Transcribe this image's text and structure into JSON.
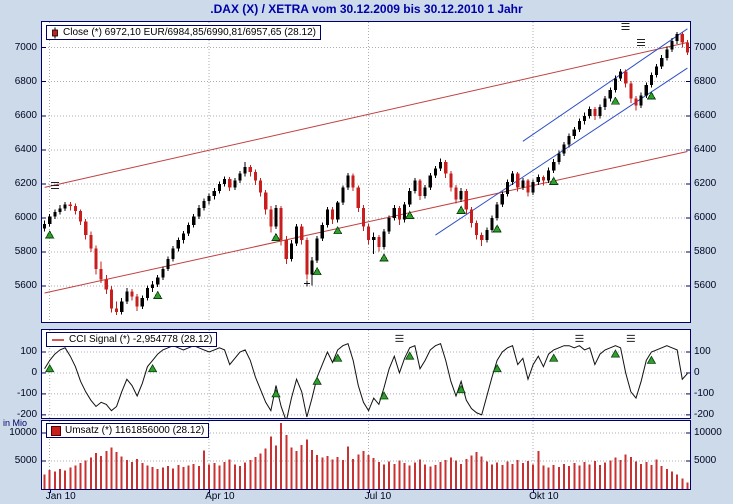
{
  "title": ".DAX (X) / XETRA vom 30.12.2009 bis 30.12.2010 1 Jahr",
  "volume_unit": "in Mio",
  "legends": {
    "close": "Close (*) 6972,10 EUR/6984,85/6990,81/6957,65 (28.12)",
    "cci": "CCI Signal (*) -2,954778 (28.12)",
    "volume": "Umsatz (*) 1161856000 (28.12)"
  },
  "colors": {
    "background": "#ccdaea",
    "panel_bg": "#ffffff",
    "border": "#000066",
    "title": "#0000a8",
    "grid": "#a8aeb6",
    "candle_up": "#000000",
    "candle_down": "#c81e1e",
    "trend_red": "#c04040",
    "trend_blue": "#3050c8",
    "cci_line": "#111111",
    "volume_bar": "#c83232",
    "signal_green": "#2f9e2f"
  },
  "x_axis": {
    "labels": [
      {
        "label": "Jan 10",
        "index": 1
      },
      {
        "label": "Apr 10",
        "index": 32
      },
      {
        "label": "Jul 10",
        "index": 63
      },
      {
        "label": "Okt 10",
        "index": 95
      }
    ]
  },
  "chart_data": [
    {
      "type": "candlestick",
      "name": "DAX Close",
      "y_ticks": [
        7000,
        6800,
        6600,
        6400,
        6200,
        6000,
        5800,
        5600
      ],
      "value_range": [
        5390,
        7150
      ],
      "candles": [
        [
          5940,
          5985,
          5920,
          5965
        ],
        [
          5965,
          6025,
          5950,
          6010
        ],
        [
          6010,
          6050,
          5995,
          6035
        ],
        [
          6035,
          6075,
          6020,
          6055
        ],
        [
          6055,
          6095,
          6040,
          6080
        ],
        [
          6080,
          6095,
          6045,
          6070
        ],
        [
          6070,
          6085,
          6020,
          6040
        ],
        [
          6040,
          6050,
          5960,
          5980
        ],
        [
          5980,
          5995,
          5875,
          5900
        ],
        [
          5900,
          5920,
          5800,
          5820
        ],
        [
          5820,
          5840,
          5670,
          5700
        ],
        [
          5700,
          5745,
          5620,
          5640
        ],
        [
          5640,
          5665,
          5555,
          5580
        ],
        [
          5580,
          5600,
          5445,
          5470
        ],
        [
          5470,
          5510,
          5430,
          5450
        ],
        [
          5450,
          5530,
          5435,
          5510
        ],
        [
          5510,
          5590,
          5495,
          5570
        ],
        [
          5570,
          5585,
          5515,
          5540
        ],
        [
          5540,
          5555,
          5455,
          5480
        ],
        [
          5480,
          5545,
          5465,
          5530
        ],
        [
          5530,
          5605,
          5515,
          5590
        ],
        [
          5590,
          5630,
          5565,
          5610
        ],
        [
          5610,
          5665,
          5595,
          5650
        ],
        [
          5650,
          5715,
          5635,
          5700
        ],
        [
          5700,
          5775,
          5690,
          5760
        ],
        [
          5760,
          5835,
          5745,
          5820
        ],
        [
          5820,
          5885,
          5805,
          5870
        ],
        [
          5870,
          5925,
          5850,
          5910
        ],
        [
          5910,
          5975,
          5895,
          5960
        ],
        [
          5960,
          6025,
          5945,
          6010
        ],
        [
          6010,
          6075,
          5995,
          6060
        ],
        [
          6060,
          6115,
          6045,
          6100
        ],
        [
          6100,
          6145,
          6080,
          6130
        ],
        [
          6130,
          6175,
          6110,
          6160
        ],
        [
          6160,
          6215,
          6145,
          6200
        ],
        [
          6200,
          6245,
          6185,
          6230
        ],
        [
          6230,
          6240,
          6160,
          6180
        ],
        [
          6180,
          6235,
          6165,
          6220
        ],
        [
          6220,
          6275,
          6205,
          6260
        ],
        [
          6260,
          6330,
          6245,
          6300
        ],
        [
          6300,
          6310,
          6245,
          6270
        ],
        [
          6270,
          6285,
          6195,
          6220
        ],
        [
          6220,
          6235,
          6125,
          6150
        ],
        [
          6150,
          6165,
          6020,
          6050
        ],
        [
          6050,
          6070,
          5915,
          5950
        ],
        [
          5950,
          6075,
          5935,
          6060
        ],
        [
          6060,
          6070,
          5840,
          5870
        ],
        [
          5870,
          5895,
          5730,
          5760
        ],
        [
          5760,
          5870,
          5745,
          5850
        ],
        [
          5850,
          5965,
          5835,
          5950
        ],
        [
          5950,
          5965,
          5845,
          5870
        ],
        [
          5870,
          5885,
          5640,
          5670
        ],
        [
          5670,
          5770,
          5605,
          5750
        ],
        [
          5750,
          5895,
          5735,
          5880
        ],
        [
          5880,
          5975,
          5865,
          5960
        ],
        [
          5960,
          6065,
          5945,
          6050
        ],
        [
          6050,
          6065,
          5965,
          5990
        ],
        [
          5990,
          6100,
          5975,
          6090
        ],
        [
          6090,
          6190,
          6075,
          6180
        ],
        [
          6180,
          6265,
          6165,
          6250
        ],
        [
          6250,
          6260,
          6160,
          6180
        ],
        [
          6180,
          6190,
          6035,
          6060
        ],
        [
          6060,
          6075,
          5925,
          5950
        ],
        [
          5950,
          5965,
          5845,
          5870
        ],
        [
          5870,
          5915,
          5790,
          5890
        ],
        [
          5890,
          5900,
          5805,
          5830
        ],
        [
          5830,
          5935,
          5815,
          5920
        ],
        [
          5920,
          6015,
          5905,
          6000
        ],
        [
          6000,
          6075,
          5985,
          6060
        ],
        [
          6060,
          6070,
          5960,
          5990
        ],
        [
          5990,
          6095,
          5975,
          6080
        ],
        [
          6080,
          6175,
          6065,
          6160
        ],
        [
          6160,
          6235,
          6145,
          6220
        ],
        [
          6220,
          6230,
          6105,
          6130
        ],
        [
          6130,
          6195,
          6115,
          6180
        ],
        [
          6180,
          6265,
          6165,
          6250
        ],
        [
          6250,
          6305,
          6235,
          6290
        ],
        [
          6290,
          6350,
          6275,
          6330
        ],
        [
          6330,
          6340,
          6235,
          6260
        ],
        [
          6260,
          6275,
          6155,
          6180
        ],
        [
          6180,
          6195,
          6085,
          6110
        ],
        [
          6110,
          6175,
          6095,
          6160
        ],
        [
          6160,
          6170,
          6025,
          6050
        ],
        [
          6050,
          6065,
          5945,
          5970
        ],
        [
          5970,
          5985,
          5875,
          5900
        ],
        [
          5900,
          5915,
          5835,
          5870
        ],
        [
          5870,
          5945,
          5855,
          5930
        ],
        [
          5930,
          6015,
          5915,
          6000
        ],
        [
          6000,
          6095,
          5985,
          6080
        ],
        [
          6080,
          6155,
          6065,
          6140
        ],
        [
          6140,
          6225,
          6125,
          6210
        ],
        [
          6210,
          6275,
          6195,
          6260
        ],
        [
          6260,
          6270,
          6155,
          6180
        ],
        [
          6180,
          6235,
          6165,
          6220
        ],
        [
          6220,
          6230,
          6125,
          6150
        ],
        [
          6150,
          6225,
          6135,
          6210
        ],
        [
          6210,
          6255,
          6195,
          6240
        ],
        [
          6240,
          6250,
          6190,
          6220
        ],
        [
          6220,
          6295,
          6205,
          6280
        ],
        [
          6280,
          6345,
          6265,
          6330
        ],
        [
          6330,
          6395,
          6315,
          6380
        ],
        [
          6380,
          6445,
          6365,
          6430
        ],
        [
          6430,
          6495,
          6415,
          6480
        ],
        [
          6480,
          6535,
          6465,
          6520
        ],
        [
          6520,
          6585,
          6505,
          6570
        ],
        [
          6570,
          6620,
          6550,
          6600
        ],
        [
          6600,
          6655,
          6585,
          6640
        ],
        [
          6640,
          6650,
          6575,
          6600
        ],
        [
          6600,
          6665,
          6585,
          6650
        ],
        [
          6650,
          6715,
          6635,
          6700
        ],
        [
          6700,
          6765,
          6685,
          6750
        ],
        [
          6750,
          6835,
          6735,
          6820
        ],
        [
          6820,
          6875,
          6805,
          6860
        ],
        [
          6860,
          6870,
          6765,
          6790
        ],
        [
          6790,
          6805,
          6675,
          6700
        ],
        [
          6700,
          6715,
          6630,
          6660
        ],
        [
          6660,
          6735,
          6645,
          6720
        ],
        [
          6720,
          6795,
          6705,
          6780
        ],
        [
          6780,
          6855,
          6765,
          6840
        ],
        [
          6840,
          6905,
          6825,
          6890
        ],
        [
          6890,
          6955,
          6875,
          6940
        ],
        [
          6940,
          7005,
          6925,
          6990
        ],
        [
          6990,
          7055,
          6975,
          7040
        ],
        [
          7040,
          7090,
          7020,
          7080
        ],
        [
          7080,
          7087,
          7000,
          7030
        ],
        [
          7030,
          7045,
          6955,
          6972
        ]
      ],
      "trendlines": [
        {
          "name": "lower-red-channel",
          "from": [
            0,
            5560
          ],
          "to": [
            125,
            6390
          ],
          "color": "#c04040"
        },
        {
          "name": "upper-red-channel",
          "from": [
            0,
            6180
          ],
          "to": [
            125,
            7030
          ],
          "color": "#c04040"
        },
        {
          "name": "lower-blue-channel",
          "from": [
            76,
            5900
          ],
          "to": [
            125,
            6880
          ],
          "color": "#3050c8"
        },
        {
          "name": "upper-blue-channel",
          "from": [
            93,
            6450
          ],
          "to": [
            125,
            7110
          ],
          "color": "#3050c8"
        }
      ],
      "buy_markers": [
        [
          1,
          5900
        ],
        [
          22,
          5545
        ],
        [
          45,
          5885
        ],
        [
          53,
          5685
        ],
        [
          57,
          5925
        ],
        [
          66,
          5765
        ],
        [
          71,
          6015
        ],
        [
          81,
          6045
        ],
        [
          88,
          5935
        ],
        [
          99,
          6215
        ],
        [
          111,
          6685
        ],
        [
          118,
          6715
        ]
      ],
      "hash_markers": [
        [
          2,
          6190
        ],
        [
          113,
          7125
        ],
        [
          116,
          7030
        ]
      ],
      "plus_markers": [
        [
          51,
          5615
        ]
      ]
    },
    {
      "type": "line",
      "name": "CCI Signal",
      "y_ticks": [
        100,
        0,
        -100,
        -200
      ],
      "value_range": [
        -215,
        205
      ],
      "values": [
        20,
        60,
        90,
        110,
        120,
        80,
        30,
        -40,
        -90,
        -130,
        -160,
        -140,
        -150,
        -180,
        -160,
        -90,
        -30,
        -60,
        -110,
        -50,
        30,
        60,
        90,
        110,
        120,
        130,
        120,
        110,
        120,
        130,
        120,
        110,
        100,
        110,
        120,
        110,
        40,
        70,
        100,
        110,
        60,
        -20,
        -80,
        -140,
        -180,
        -60,
        -160,
        -230,
        -120,
        -30,
        -90,
        -210,
        -120,
        -20,
        40,
        100,
        50,
        110,
        130,
        140,
        60,
        -60,
        -140,
        -180,
        -120,
        -150,
        -70,
        20,
        80,
        0,
        70,
        120,
        130,
        20,
        60,
        110,
        130,
        140,
        60,
        -40,
        -110,
        -40,
        -130,
        -170,
        -190,
        -200,
        -110,
        -20,
        60,
        100,
        120,
        130,
        40,
        70,
        -30,
        40,
        80,
        30,
        90,
        110,
        120,
        130,
        130,
        120,
        130,
        110,
        120,
        40,
        90,
        110,
        120,
        130,
        120,
        0,
        -90,
        -120,
        -40,
        60,
        100,
        110,
        120,
        130,
        120,
        110,
        -30,
        -3
      ],
      "buy_markers": [
        [
          1,
          20
        ],
        [
          21,
          20
        ],
        [
          45,
          -100
        ],
        [
          53,
          -40
        ],
        [
          57,
          70
        ],
        [
          66,
          -110
        ],
        [
          71,
          80
        ],
        [
          81,
          -80
        ],
        [
          88,
          20
        ],
        [
          99,
          70
        ],
        [
          111,
          90
        ],
        [
          118,
          60
        ]
      ],
      "hash_markers": [
        [
          69,
          165
        ],
        [
          104,
          165
        ],
        [
          114,
          165
        ]
      ]
    },
    {
      "type": "bar",
      "name": "Umsatz",
      "y_ticks": [
        10000,
        5000
      ],
      "value_range": [
        0,
        12143
      ],
      "values": [
        2600,
        3400,
        3100,
        3600,
        3300,
        3800,
        4200,
        4600,
        5100,
        5600,
        6400,
        5900,
        6800,
        7400,
        6600,
        5800,
        5200,
        4800,
        5400,
        4600,
        4200,
        3900,
        3600,
        3800,
        4100,
        3700,
        4300,
        3900,
        4200,
        4500,
        4100,
        6900,
        4400,
        4600,
        4200,
        4800,
        5300,
        4400,
        4100,
        4700,
        5200,
        5700,
        6300,
        7200,
        9400,
        7800,
        11800,
        9600,
        7400,
        6800,
        7900,
        8800,
        7000,
        6100,
        5600,
        5900,
        5300,
        5700,
        5200,
        7600,
        5400,
        6200,
        6800,
        6100,
        5500,
        4800,
        4400,
        4900,
        4500,
        5100,
        4600,
        4200,
        4700,
        5300,
        4400,
        4000,
        4300,
        4800,
        5200,
        5600,
        5100,
        4500,
        5400,
        6000,
        6600,
        5800,
        4900,
        4400,
        4700,
        4300,
        4900,
        4500,
        5200,
        4600,
        5000,
        4400,
        6800,
        4200,
        3800,
        4300,
        3900,
        4500,
        4100,
        4600,
        4200,
        4800,
        4400,
        5000,
        4300,
        4700,
        5100,
        5600,
        5200,
        6200,
        5700,
        4900,
        4500,
        4800,
        4300,
        5300,
        4100,
        3600,
        3100,
        2600,
        1900,
        1162
      ]
    }
  ]
}
